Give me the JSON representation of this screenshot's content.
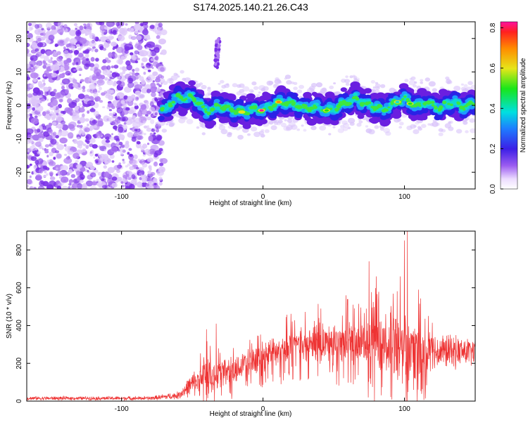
{
  "title": "S174.2025.140.21.26.C43",
  "chart_data": [
    {
      "type": "heatmap",
      "xlabel": "Height of straight line (km)",
      "ylabel": "Frequency (Hz)",
      "xlim": [
        -167,
        150
      ],
      "ylim": [
        -25,
        25
      ],
      "x_ticks": [
        -100,
        0,
        100
      ],
      "y_ticks": [
        -20,
        -10,
        0,
        10,
        20
      ],
      "colorbar": {
        "label": "Normalized spectral amplitude",
        "range": [
          0,
          0.83
        ],
        "ticks": [
          "0.0",
          "0.2",
          "0.4",
          "0.6",
          "0.8"
        ]
      },
      "ridge": [
        [
          -70,
          -1.5
        ],
        [
          -65,
          1.0
        ],
        [
          -60,
          2.5
        ],
        [
          -55,
          2.0
        ],
        [
          -50,
          2.5
        ],
        [
          -45,
          0.5
        ],
        [
          -40,
          -2.0
        ],
        [
          -35,
          -1.0
        ],
        [
          -30,
          0.0
        ],
        [
          -25,
          -1.0
        ],
        [
          -20,
          -1.5
        ],
        [
          -15,
          -2.0
        ],
        [
          -10,
          -1.5
        ],
        [
          -5,
          -1.0
        ],
        [
          0,
          -1.5
        ],
        [
          5,
          -0.5
        ],
        [
          10,
          0.5
        ],
        [
          15,
          1.0
        ],
        [
          20,
          0.5
        ],
        [
          25,
          0.0
        ],
        [
          30,
          -1.0
        ],
        [
          35,
          -0.5
        ],
        [
          40,
          -1.0
        ],
        [
          45,
          -1.5
        ],
        [
          50,
          -1.0
        ],
        [
          55,
          0.0
        ],
        [
          60,
          1.0
        ],
        [
          65,
          2.0
        ],
        [
          70,
          1.0
        ],
        [
          75,
          0.0
        ],
        [
          80,
          -0.5
        ],
        [
          85,
          -1.5
        ],
        [
          90,
          0.0
        ],
        [
          95,
          1.0
        ],
        [
          100,
          2.0
        ],
        [
          105,
          0.5
        ],
        [
          110,
          -0.5
        ],
        [
          115,
          1.0
        ],
        [
          120,
          0.0
        ],
        [
          125,
          -1.0
        ],
        [
          130,
          0.5
        ],
        [
          135,
          1.0
        ],
        [
          140,
          -0.5
        ],
        [
          145,
          0.0
        ],
        [
          150,
          0.5
        ]
      ],
      "hotspots": [
        {
          "x": -15,
          "y": -2.0,
          "amp": 0.6
        },
        {
          "x": -1,
          "y": -1.5,
          "amp": 0.83
        },
        {
          "x": 11,
          "y": 1.0,
          "amp": 0.75
        },
        {
          "x": 45,
          "y": -1.5,
          "amp": 0.5
        },
        {
          "x": 95,
          "y": 1.0,
          "amp": 0.45
        },
        {
          "x": 104,
          "y": 0.5,
          "amp": 0.5
        }
      ],
      "spur": {
        "x": -33,
        "y_range": [
          11,
          20
        ]
      }
    },
    {
      "type": "line",
      "xlabel": "Height of straight line (km)",
      "ylabel": "SNR (10 * v/v)",
      "xlim": [
        -167,
        150
      ],
      "ylim": [
        0,
        900
      ],
      "x_ticks": [
        -100,
        0,
        100
      ],
      "y_ticks": [
        0,
        200,
        400,
        600,
        800
      ],
      "color": "#ee3333",
      "envelope": {
        "x": [
          -167,
          -80,
          -60,
          -50,
          -40,
          -30,
          -20,
          -10,
          0,
          20,
          40,
          60,
          80,
          100,
          120,
          150
        ],
        "mean": [
          15,
          15,
          30,
          90,
          130,
          150,
          170,
          210,
          240,
          290,
          310,
          310,
          300,
          280,
          265,
          260
        ],
        "amplitude": [
          10,
          10,
          20,
          60,
          90,
          80,
          70,
          70,
          80,
          80,
          100,
          120,
          140,
          180,
          100,
          70
        ]
      },
      "peaks": [
        {
          "x": 102,
          "y": 900
        },
        {
          "x": 100,
          "y": 850
        },
        {
          "x": 75,
          "y": 740
        },
        {
          "x": 97,
          "y": 660
        },
        {
          "x": 80,
          "y": 660
        },
        {
          "x": -33,
          "y": 410
        },
        {
          "x": -40,
          "y": 380
        },
        {
          "x": 110,
          "y": 590
        },
        {
          "x": 60,
          "y": 540
        }
      ]
    }
  ]
}
